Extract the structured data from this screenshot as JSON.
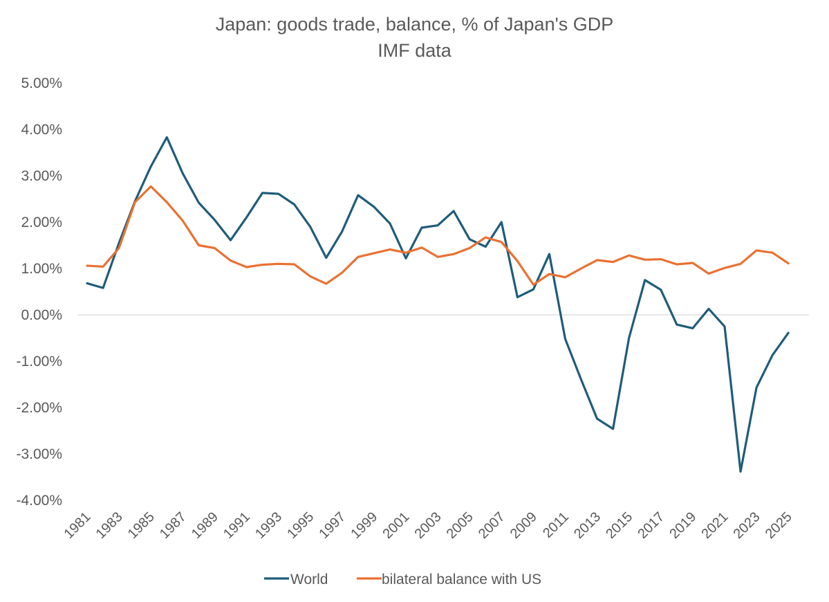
{
  "chart_data": {
    "type": "line",
    "title": "Japan: goods trade, balance, % of Japan's GDP",
    "subtitle": "IMF data",
    "x": [
      1981,
      1982,
      1983,
      1984,
      1985,
      1986,
      1987,
      1988,
      1989,
      1990,
      1991,
      1992,
      1993,
      1994,
      1995,
      1996,
      1997,
      1998,
      1999,
      2000,
      2001,
      2002,
      2003,
      2004,
      2005,
      2006,
      2007,
      2008,
      2009,
      2010,
      2011,
      2012,
      2013,
      2014,
      2015,
      2016,
      2017,
      2018,
      2019,
      2020,
      2021,
      2022,
      2023,
      2024,
      2025
    ],
    "x_tick_labels": [
      "1981",
      "1983",
      "1985",
      "1987",
      "1989",
      "1991",
      "1993",
      "1995",
      "1997",
      "1999",
      "2001",
      "2003",
      "2005",
      "2007",
      "2009",
      "2011",
      "2013",
      "2015",
      "2017",
      "2019",
      "2021",
      "2023",
      "2025"
    ],
    "y_tick_labels": [
      "5.00%",
      "4.00%",
      "3.00%",
      "2.00%",
      "1.00%",
      "0.00%",
      "-1.00%",
      "-2.00%",
      "-3.00%",
      "-4.00%"
    ],
    "ylim": [
      -4,
      5
    ],
    "y_unit": "%",
    "grid": false,
    "legend_position": "bottom",
    "series": [
      {
        "name": "World",
        "color": "#1f5c7a",
        "values": [
          0.68,
          0.58,
          1.55,
          2.45,
          3.2,
          3.83,
          3.05,
          2.42,
          2.05,
          1.61,
          2.1,
          2.63,
          2.61,
          2.38,
          1.9,
          1.23,
          1.8,
          2.58,
          2.33,
          1.97,
          1.22,
          1.88,
          1.93,
          2.24,
          1.63,
          1.47,
          2.0,
          0.38,
          0.55,
          1.31,
          -0.52,
          -1.4,
          -2.24,
          -2.46,
          -0.5,
          0.75,
          0.54,
          -0.21,
          -0.29,
          0.13,
          -0.25,
          -3.38,
          -1.57,
          -0.87,
          -0.39
        ]
      },
      {
        "name": "bilateral balance with US",
        "color": "#e97132",
        "values": [
          1.06,
          1.04,
          1.44,
          2.43,
          2.77,
          2.43,
          2.03,
          1.5,
          1.44,
          1.17,
          1.03,
          1.08,
          1.1,
          1.09,
          0.83,
          0.67,
          0.91,
          1.25,
          1.33,
          1.41,
          1.34,
          1.45,
          1.25,
          1.31,
          1.44,
          1.67,
          1.57,
          1.16,
          0.65,
          0.88,
          0.81,
          1.0,
          1.18,
          1.14,
          1.28,
          1.19,
          1.2,
          1.09,
          1.12,
          0.89,
          1.01,
          1.1,
          1.39,
          1.34,
          1.11
        ]
      }
    ]
  }
}
